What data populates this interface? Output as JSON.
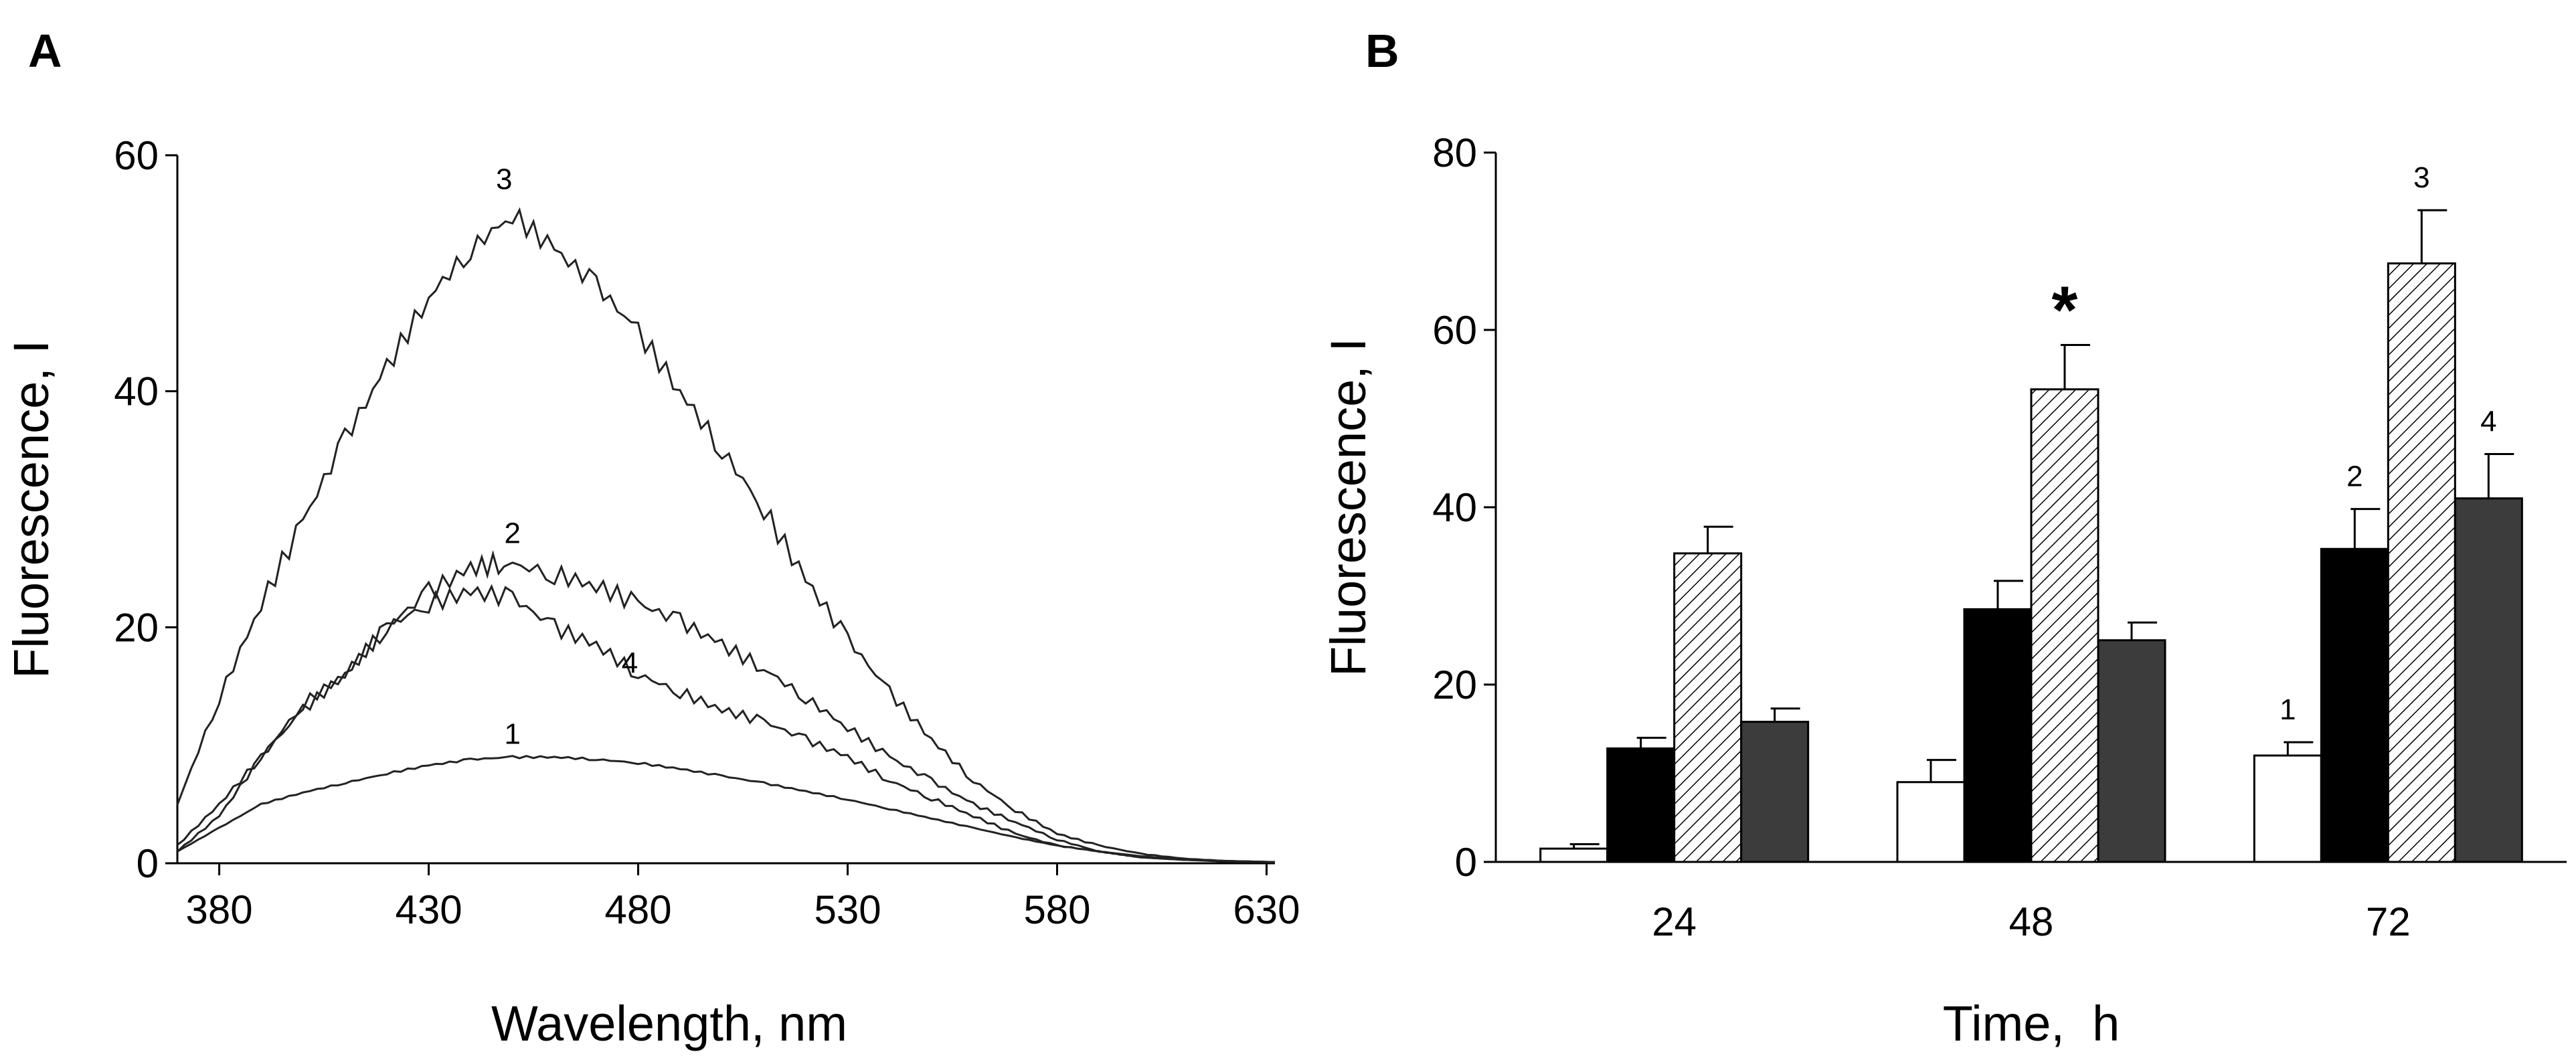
{
  "chart_data": [
    {
      "type": "line",
      "panel_label": "A",
      "xlabel": "Wavelength, nm",
      "ylabel": "Fluorescence, I",
      "xlim": [
        370,
        632
      ],
      "ylim": [
        0,
        60
      ],
      "xticks": [
        380,
        430,
        480,
        530,
        580,
        630
      ],
      "yticks": [
        0,
        20,
        40,
        60
      ],
      "series": [
        {
          "name": "1",
          "label_at": [
            450,
            9
          ],
          "x": [
            370,
            380,
            390,
            400,
            410,
            420,
            430,
            440,
            450,
            460,
            470,
            480,
            490,
            500,
            510,
            520,
            530,
            540,
            550,
            560,
            570,
            580,
            590,
            600,
            610,
            620,
            632
          ],
          "y": [
            1,
            3,
            5,
            6,
            6.8,
            7.6,
            8.3,
            8.8,
            9,
            9,
            8.8,
            8.5,
            8,
            7.4,
            6.8,
            6.1,
            5.4,
            4.6,
            3.8,
            3,
            2.2,
            1.5,
            1,
            0.6,
            0.3,
            0.15,
            0.1
          ]
        },
        {
          "name": "2",
          "label_at": [
            450,
            26
          ],
          "x": [
            370,
            380,
            390,
            400,
            410,
            420,
            430,
            440,
            448,
            460,
            470,
            480,
            490,
            500,
            510,
            520,
            530,
            540,
            550,
            560,
            570,
            580,
            590,
            600,
            610,
            620,
            632
          ],
          "y": [
            1.5,
            5,
            9,
            13.5,
            16,
            20,
            23,
            25,
            25.5,
            24.5,
            23.5,
            22,
            20.5,
            18.5,
            16.5,
            14,
            11.5,
            9,
            7,
            5,
            3.5,
            2,
            1,
            0.5,
            0.3,
            0.2,
            0.1
          ]
        },
        {
          "name": "3",
          "label_at": [
            448,
            56
          ],
          "x": [
            370,
            380,
            390,
            400,
            410,
            420,
            430,
            440,
            450,
            460,
            470,
            480,
            490,
            500,
            510,
            520,
            530,
            540,
            550,
            560,
            570,
            580,
            590,
            600,
            610,
            620,
            632
          ],
          "y": [
            5,
            14,
            22,
            29,
            36,
            42,
            48,
            52,
            55,
            52,
            49,
            45,
            40,
            35,
            30,
            24,
            19,
            14.5,
            10.5,
            7,
            4.5,
            2.5,
            1.5,
            0.8,
            0.4,
            0.2,
            0.1
          ]
        },
        {
          "name": "4",
          "label_at": [
            478,
            15
          ],
          "x": [
            370,
            380,
            390,
            400,
            410,
            420,
            430,
            440,
            450,
            460,
            470,
            480,
            490,
            500,
            510,
            520,
            530,
            540,
            550,
            560,
            570,
            580,
            590,
            600,
            610,
            620,
            632
          ],
          "y": [
            1,
            4,
            9,
            13,
            16,
            20,
            22,
            23,
            22.5,
            20,
            18.5,
            16,
            14.5,
            13,
            12,
            10.5,
            9,
            7,
            5.5,
            4,
            2.5,
            1.5,
            1,
            0.5,
            0.3,
            0.2,
            0.1
          ]
        }
      ]
    },
    {
      "type": "bar",
      "panel_label": "B",
      "xlabel": "Time,  h",
      "ylabel": "Fluorescence, I",
      "ylim": [
        0,
        80
      ],
      "yticks": [
        0,
        20,
        40,
        60,
        80
      ],
      "categories": [
        "24",
        "48",
        "72"
      ],
      "series": [
        {
          "name": "1",
          "fill": "#ffffff",
          "values": [
            1.5,
            9,
            12
          ],
          "errors": [
            0.5,
            2.5,
            1.5
          ]
        },
        {
          "name": "2",
          "fill": "#000000",
          "values": [
            12.8,
            28.5,
            35.3
          ],
          "errors": [
            1.2,
            3.2,
            4.5
          ]
        },
        {
          "name": "3",
          "fill": "hatch",
          "values": [
            34.8,
            53.3,
            67.5
          ],
          "errors": [
            3,
            5,
            6
          ]
        },
        {
          "name": "4",
          "fill": "#3c3c3c",
          "values": [
            15.8,
            25,
            41
          ],
          "errors": [
            1.5,
            2,
            5
          ]
        }
      ],
      "annotations": [
        {
          "text": "*",
          "category": "48",
          "series": "3"
        },
        {
          "text": "1",
          "category": "72",
          "series": "1"
        },
        {
          "text": "2",
          "category": "72",
          "series": "2"
        },
        {
          "text": "3",
          "category": "72",
          "series": "3"
        },
        {
          "text": "4",
          "category": "72",
          "series": "4"
        }
      ]
    }
  ]
}
